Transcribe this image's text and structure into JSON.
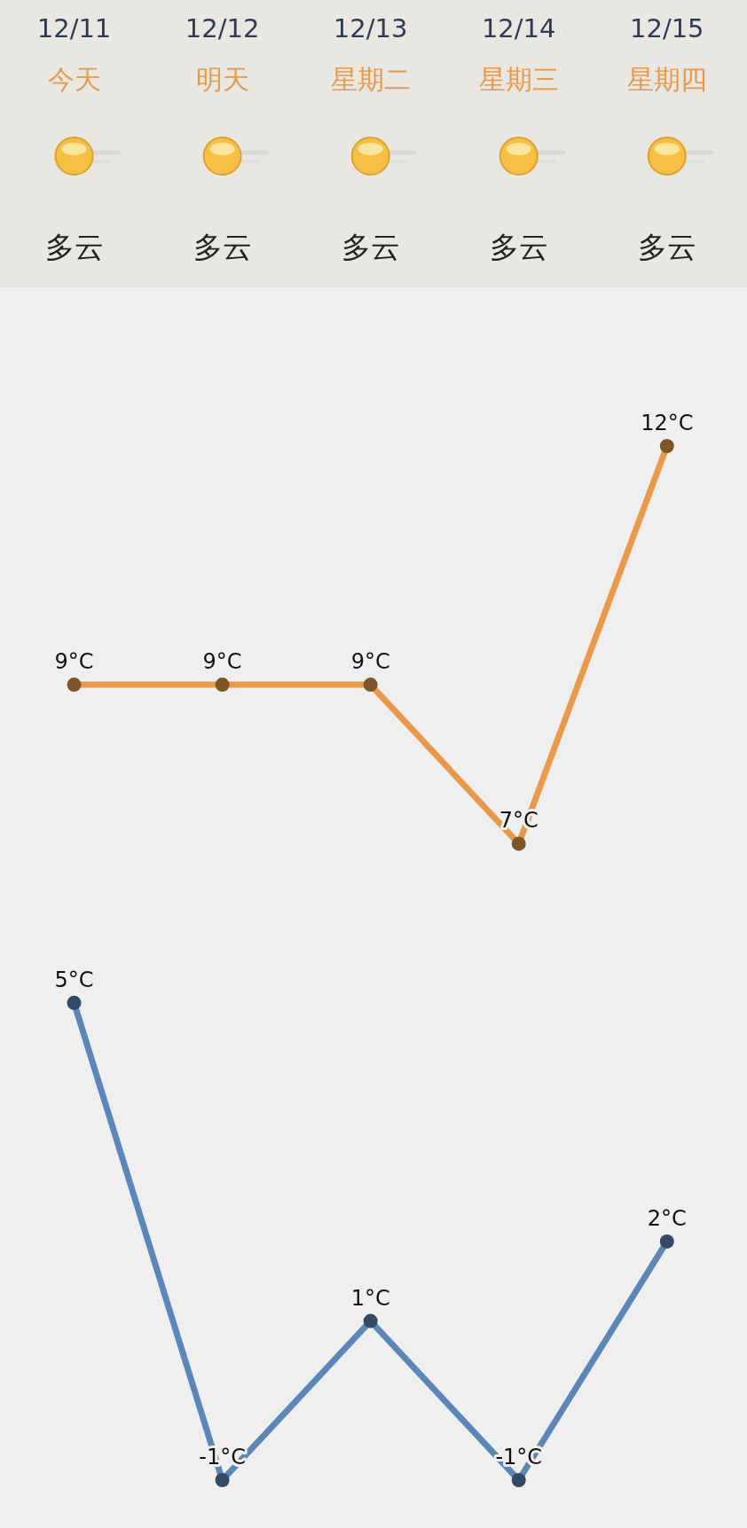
{
  "chart_data": {
    "type": "line",
    "categories": [
      "12/11",
      "12/12",
      "12/13",
      "12/14",
      "12/15"
    ],
    "annotations": [
      "今天",
      "明天",
      "星期二",
      "星期三",
      "星期四",
      "多云",
      "多云",
      "多云",
      "多云",
      "多云"
    ],
    "marker": "circle",
    "line_style": "solid",
    "grid": false,
    "tick_labels": "x",
    "series": [
      {
        "color": "#e8994a",
        "values": [
          9,
          9,
          9,
          7,
          12
        ],
        "value_labels": [
          "9°C",
          "9°C",
          "9°C",
          "7°C",
          "12°C"
        ]
      },
      {
        "color": "#5a87b8",
        "values": [
          5,
          -1,
          1,
          -1,
          2
        ],
        "value_labels": [
          "5°C",
          "-1°C",
          "1°C",
          "-1°C",
          "2°C"
        ]
      }
    ]
  }
}
